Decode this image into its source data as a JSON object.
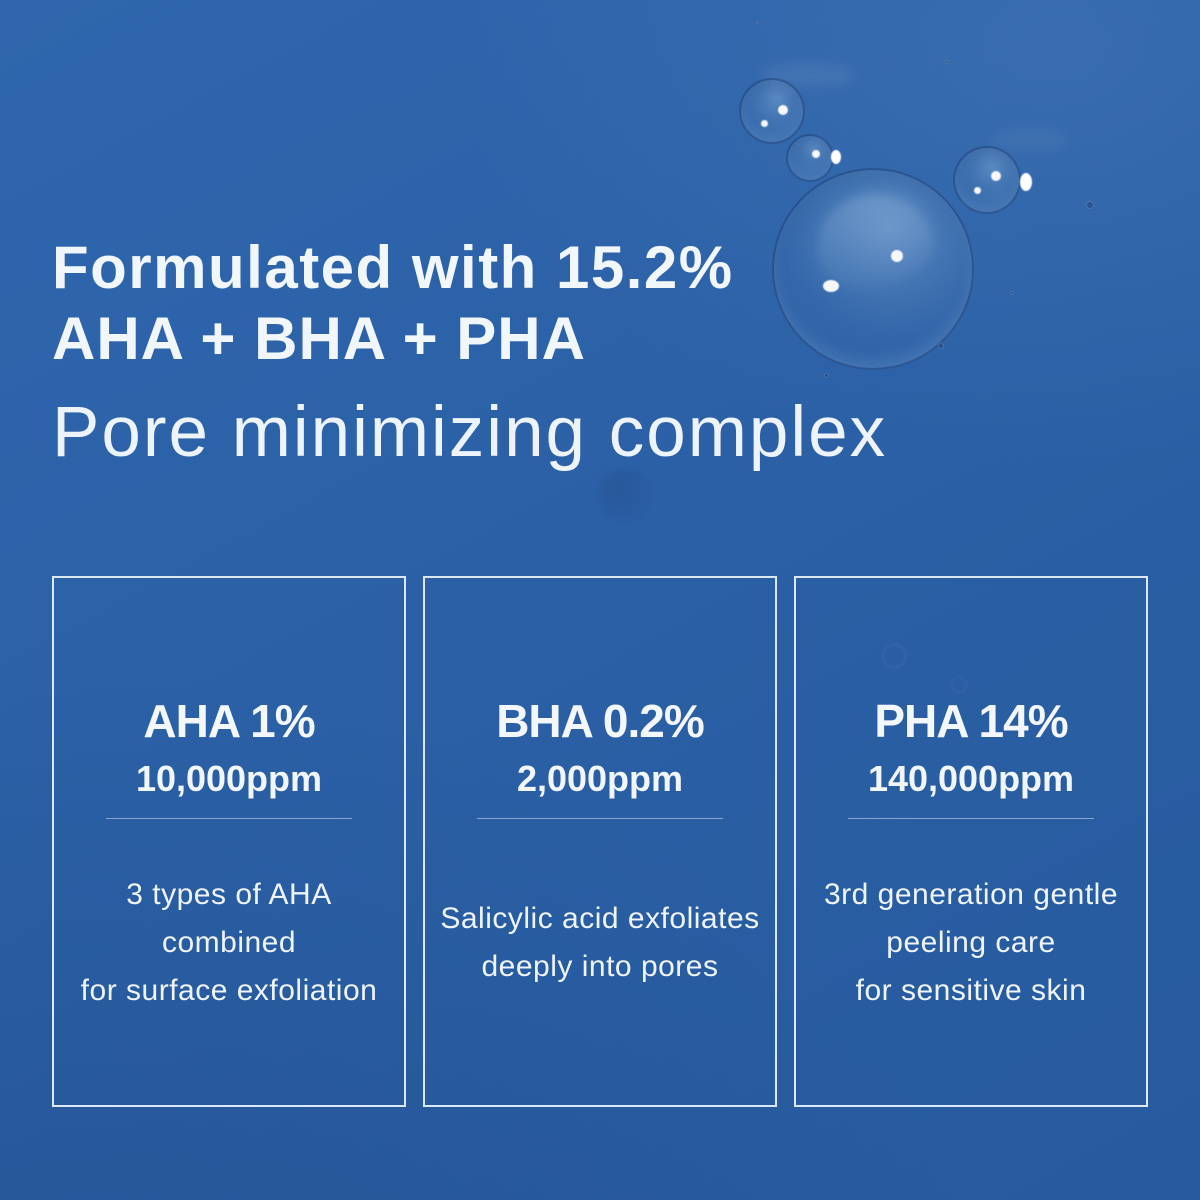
{
  "page": {
    "background_color": "#2b60a6",
    "text_color": "#f1f6fb"
  },
  "headline": {
    "line1": "Formulated with 15.2%",
    "line2": "AHA + BHA + PHA",
    "line3": "Pore minimizing complex"
  },
  "cards": [
    {
      "title": "AHA 1%",
      "concentration": "10,000ppm",
      "description_lines": [
        "3 types of AHA",
        "combined",
        "for surface exfoliation"
      ]
    },
    {
      "title": "BHA 0.2%",
      "concentration": "2,000ppm",
      "description_lines": [
        "Salicylic acid exfoliates",
        "deeply into pores"
      ]
    },
    {
      "title": "PHA 14%",
      "concentration": "140,000ppm",
      "description_lines": [
        "3rd generation gentle",
        "peeling care",
        "for sensitive skin"
      ]
    }
  ],
  "decor": {
    "droplets": [
      "large-water-drop",
      "small-water-drop-1",
      "small-water-drop-2",
      "small-water-drop-3"
    ]
  }
}
